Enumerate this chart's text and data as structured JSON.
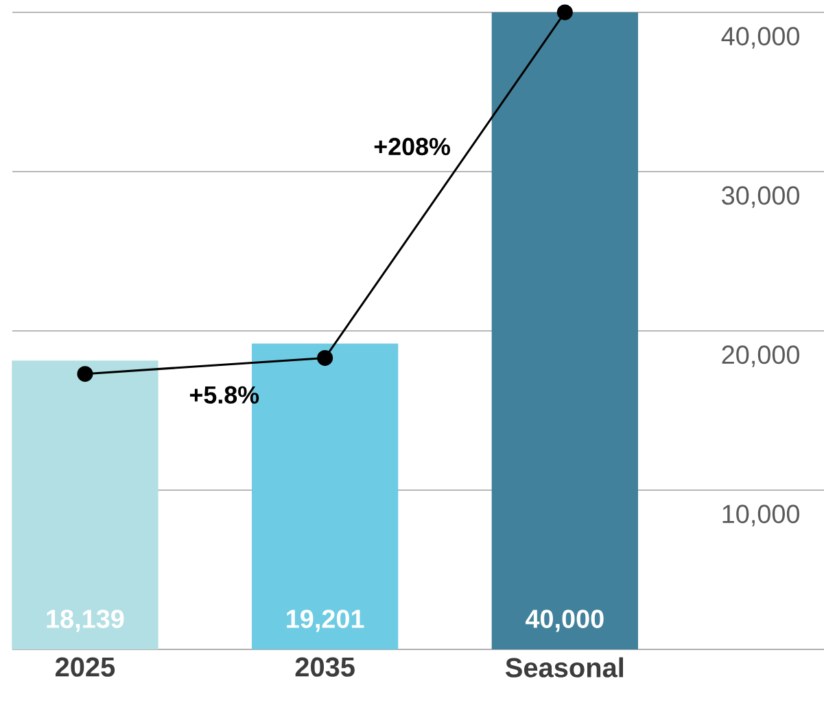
{
  "chart_data": {
    "type": "bar",
    "categories": [
      "2025",
      "2035",
      "Seasonal"
    ],
    "series": [
      {
        "colors": [
          "#b2dfe3",
          "#6dcbe3",
          "#41819b"
        ],
        "values": [
          18139,
          19201,
          40000
        ],
        "value_labels": [
          "18,139",
          "19,201",
          "40,000"
        ]
      },
      {
        "type": "line",
        "color": "#000000",
        "values": [
          17300,
          18300,
          40000
        ]
      }
    ],
    "marker": "circle",
    "line_style": "solid",
    "ylim": [
      0,
      40000
    ],
    "yticks": [
      {
        "value": 10000,
        "label": "10,000"
      },
      {
        "value": 20000,
        "label": "20,000"
      },
      {
        "value": 30000,
        "label": "30,000"
      },
      {
        "value": 40000,
        "label": "40,000"
      }
    ],
    "grid": "y",
    "annotations": [
      "+5.8%",
      "+208%"
    ]
  }
}
